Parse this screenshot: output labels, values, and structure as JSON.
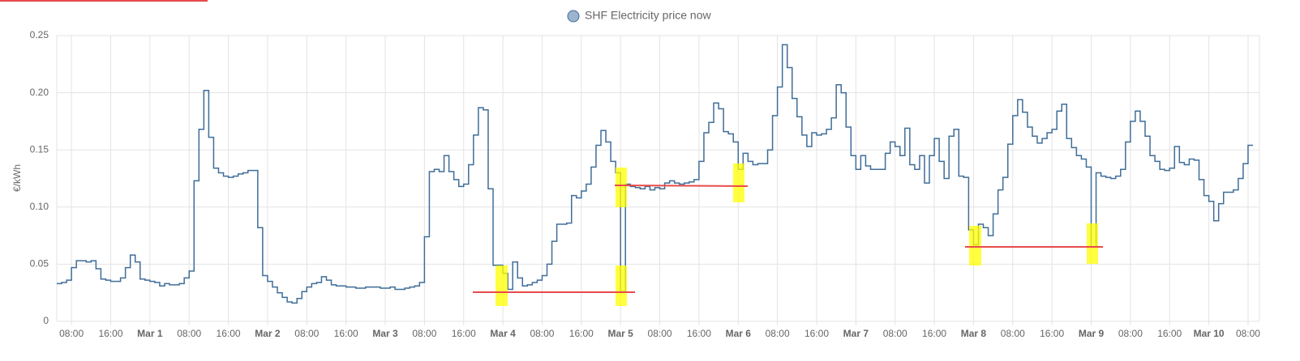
{
  "chart_data": {
    "type": "line",
    "series": [
      {
        "name": "SHF Electricity price now",
        "color": "#3f6d98",
        "legend_fill": "#9db4cf",
        "step": true,
        "values": [
          0.033,
          0.034,
          0.036,
          0.047,
          0.053,
          0.053,
          0.052,
          0.053,
          0.046,
          0.037,
          0.036,
          0.035,
          0.035,
          0.038,
          0.047,
          0.058,
          0.052,
          0.037,
          0.036,
          0.035,
          0.034,
          0.031,
          0.033,
          0.032,
          0.032,
          0.033,
          0.038,
          0.044,
          0.123,
          0.168,
          0.202,
          0.161,
          0.134,
          0.13,
          0.127,
          0.126,
          0.127,
          0.129,
          0.13,
          0.132,
          0.132,
          0.082,
          0.04,
          0.035,
          0.03,
          0.025,
          0.021,
          0.017,
          0.016,
          0.02,
          0.026,
          0.03,
          0.033,
          0.034,
          0.039,
          0.036,
          0.032,
          0.031,
          0.031,
          0.03,
          0.03,
          0.029,
          0.029,
          0.03,
          0.03,
          0.03,
          0.029,
          0.029,
          0.03,
          0.028,
          0.028,
          0.029,
          0.03,
          0.031,
          0.034,
          0.074,
          0.131,
          0.133,
          0.131,
          0.145,
          0.131,
          0.124,
          0.118,
          0.12,
          0.137,
          0.163,
          0.187,
          0.185,
          0.116,
          0.049,
          0.049,
          0.042,
          0.028,
          0.052,
          0.038,
          0.031,
          0.032,
          0.034,
          0.036,
          0.04,
          0.05,
          0.07,
          0.085,
          0.085,
          0.086,
          0.11,
          0.108,
          0.114,
          0.12,
          0.135,
          0.154,
          0.167,
          0.157,
          0.14,
          0.13,
          0.026,
          0.12,
          0.118,
          0.117,
          0.116,
          0.118,
          0.115,
          0.117,
          0.116,
          0.121,
          0.123,
          0.121,
          0.12,
          0.121,
          0.122,
          0.124,
          0.14,
          0.165,
          0.174,
          0.191,
          0.186,
          0.166,
          0.164,
          0.157,
          0.133,
          0.147,
          0.14,
          0.137,
          0.138,
          0.138,
          0.15,
          0.18,
          0.205,
          0.242,
          0.222,
          0.195,
          0.179,
          0.163,
          0.153,
          0.165,
          0.163,
          0.164,
          0.168,
          0.178,
          0.207,
          0.2,
          0.17,
          0.145,
          0.133,
          0.145,
          0.136,
          0.133,
          0.133,
          0.133,
          0.147,
          0.157,
          0.153,
          0.145,
          0.169,
          0.137,
          0.133,
          0.145,
          0.121,
          0.145,
          0.16,
          0.14,
          0.125,
          0.162,
          0.168,
          0.127,
          0.126,
          0.08,
          0.067,
          0.085,
          0.082,
          0.075,
          0.094,
          0.115,
          0.126,
          0.155,
          0.18,
          0.194,
          0.183,
          0.17,
          0.162,
          0.156,
          0.16,
          0.165,
          0.168,
          0.184,
          0.19,
          0.16,
          0.152,
          0.145,
          0.142,
          0.135,
          0.065,
          0.13,
          0.127,
          0.126,
          0.125,
          0.127,
          0.133,
          0.157,
          0.175,
          0.184,
          0.175,
          0.162,
          0.145,
          0.14,
          0.133,
          0.132,
          0.134,
          0.153,
          0.139,
          0.137,
          0.142,
          0.141,
          0.124,
          0.11,
          0.105,
          0.088,
          0.103,
          0.113,
          0.113,
          0.115,
          0.125,
          0.138,
          0.154,
          0.154
        ]
      }
    ],
    "x": [
      "Feb 28 05:00",
      "Feb 28 06:00",
      "Feb 28 07:00",
      "Feb 28 08:00",
      "Feb 28 09:00",
      "Feb 28 10:00",
      "Feb 28 11:00",
      "Feb 28 12:00",
      "Feb 28 13:00",
      "Feb 28 14:00",
      "Feb 28 15:00",
      "Feb 28 16:00",
      "Feb 28 17:00",
      "Feb 28 18:00",
      "Feb 28 19:00",
      "Feb 28 20:00",
      "Feb 28 21:00",
      "Feb 28 22:00",
      "Feb 28 23:00",
      "Mar 1 00:00",
      "Mar 1 01:00",
      "Mar 1 02:00",
      "Mar 1 03:00",
      "Mar 1 04:00",
      "Mar 1 05:00",
      "Mar 1 06:00",
      "Mar 1 07:00",
      "Mar 1 08:00",
      "Mar 1 09:00",
      "Mar 1 10:00",
      "Mar 1 11:00",
      "Mar 1 12:00",
      "Mar 1 13:00",
      "Mar 1 14:00",
      "Mar 1 15:00",
      "Mar 1 16:00",
      "Mar 1 17:00",
      "Mar 1 18:00",
      "Mar 1 19:00",
      "Mar 1 20:00",
      "Mar 1 21:00",
      "Mar 1 22:00",
      "Mar 1 23:00",
      "Mar 2 00:00",
      "Mar 2 01:00",
      "Mar 2 02:00",
      "Mar 2 03:00",
      "Mar 2 04:00",
      "Mar 2 05:00",
      "Mar 2 06:00",
      "Mar 2 07:00",
      "Mar 2 08:00",
      "Mar 2 09:00",
      "Mar 2 10:00",
      "Mar 2 11:00",
      "Mar 2 12:00",
      "Mar 2 13:00",
      "Mar 2 14:00",
      "Mar 2 15:00",
      "Mar 2 16:00",
      "Mar 2 17:00",
      "Mar 2 18:00",
      "Mar 2 19:00",
      "Mar 2 20:00",
      "Mar 2 21:00",
      "Mar 2 22:00",
      "Mar 2 23:00",
      "Mar 3 00:00",
      "Mar 3 01:00",
      "Mar 3 02:00",
      "Mar 3 03:00",
      "Mar 3 04:00",
      "Mar 3 05:00",
      "Mar 3 06:00",
      "Mar 3 07:00",
      "Mar 3 08:00",
      "Mar 3 09:00",
      "Mar 3 10:00",
      "Mar 3 11:00",
      "Mar 3 12:00",
      "Mar 3 13:00",
      "Mar 3 14:00",
      "Mar 3 15:00",
      "Mar 3 16:00",
      "Mar 3 17:00",
      "Mar 3 18:00",
      "Mar 3 19:00",
      "Mar 3 20:00",
      "Mar 3 21:00",
      "Mar 3 22:00",
      "Mar 3 23:00",
      "Mar 4 00:00",
      "Mar 4 01:00",
      "Mar 4 02:00",
      "Mar 4 03:00",
      "Mar 4 04:00",
      "Mar 4 05:00",
      "Mar 4 06:00",
      "Mar 4 07:00",
      "Mar 4 08:00",
      "Mar 4 09:00",
      "Mar 4 10:00",
      "Mar 4 11:00",
      "Mar 4 12:00",
      "Mar 4 13:00",
      "Mar 4 14:00",
      "Mar 4 15:00",
      "Mar 4 16:00",
      "Mar 4 17:00",
      "Mar 4 18:00",
      "Mar 4 19:00",
      "Mar 4 20:00",
      "Mar 4 21:00",
      "Mar 4 22:00",
      "Mar 4 23:00",
      "Mar 5 00:00",
      "Mar 5 01:00",
      "Mar 5 02:00",
      "Mar 5 03:00",
      "Mar 5 04:00",
      "Mar 5 05:00",
      "Mar 5 06:00",
      "Mar 5 07:00",
      "Mar 5 08:00",
      "Mar 5 09:00",
      "Mar 5 10:00",
      "Mar 5 11:00",
      "Mar 5 12:00",
      "Mar 5 13:00",
      "Mar 5 14:00",
      "Mar 5 15:00",
      "Mar 5 16:00",
      "Mar 5 17:00",
      "Mar 5 18:00",
      "Mar 5 19:00",
      "Mar 5 20:00",
      "Mar 5 21:00",
      "Mar 5 22:00",
      "Mar 5 23:00",
      "Mar 6 00:00",
      "Mar 6 01:00",
      "Mar 6 02:00",
      "Mar 6 03:00",
      "Mar 6 04:00",
      "Mar 6 05:00",
      "Mar 6 06:00",
      "Mar 6 07:00",
      "Mar 6 08:00",
      "Mar 6 09:00",
      "Mar 6 10:00",
      "Mar 6 11:00",
      "Mar 6 12:00",
      "Mar 6 13:00",
      "Mar 6 14:00",
      "Mar 6 15:00",
      "Mar 6 16:00",
      "Mar 6 17:00",
      "Mar 6 18:00",
      "Mar 6 19:00",
      "Mar 6 20:00",
      "Mar 6 21:00",
      "Mar 6 22:00",
      "Mar 6 23:00",
      "Mar 7 00:00",
      "Mar 7 01:00",
      "Mar 7 02:00",
      "Mar 7 03:00",
      "Mar 7 04:00",
      "Mar 7 05:00",
      "Mar 7 06:00",
      "Mar 7 07:00",
      "Mar 7 08:00",
      "Mar 7 09:00",
      "Mar 7 10:00",
      "Mar 7 11:00",
      "Mar 7 12:00",
      "Mar 7 13:00",
      "Mar 7 14:00",
      "Mar 7 15:00",
      "Mar 7 16:00",
      "Mar 7 17:00",
      "Mar 7 18:00",
      "Mar 7 19:00",
      "Mar 7 20:00",
      "Mar 7 21:00",
      "Mar 7 22:00",
      "Mar 7 23:00",
      "Mar 8 00:00",
      "Mar 8 01:00",
      "Mar 8 02:00",
      "Mar 8 03:00",
      "Mar 8 04:00",
      "Mar 8 05:00",
      "Mar 8 06:00",
      "Mar 8 07:00",
      "Mar 8 08:00",
      "Mar 8 09:00",
      "Mar 8 10:00",
      "Mar 8 11:00",
      "Mar 8 12:00",
      "Mar 8 13:00",
      "Mar 8 14:00",
      "Mar 8 15:00",
      "Mar 8 16:00",
      "Mar 8 17:00",
      "Mar 8 18:00",
      "Mar 8 19:00",
      "Mar 8 20:00",
      "Mar 8 21:00",
      "Mar 8 22:00",
      "Mar 8 23:00",
      "Mar 9 00:00",
      "Mar 9 01:00",
      "Mar 9 02:00",
      "Mar 9 03:00",
      "Mar 9 04:00",
      "Mar 9 05:00",
      "Mar 9 06:00",
      "Mar 9 07:00",
      "Mar 9 08:00",
      "Mar 9 09:00",
      "Mar 9 10:00",
      "Mar 9 11:00",
      "Mar 9 12:00",
      "Mar 9 13:00",
      "Mar 9 14:00",
      "Mar 9 15:00",
      "Mar 9 16:00",
      "Mar 9 17:00",
      "Mar 9 18:00",
      "Mar 9 19:00",
      "Mar 9 20:00",
      "Mar 9 21:00",
      "Mar 9 22:00",
      "Mar 9 23:00",
      "Mar 10 00:00",
      "Mar 10 01:00",
      "Mar 10 02:00",
      "Mar 10 03:00",
      "Mar 10 04:00",
      "Mar 10 05:00",
      "Mar 10 06:00",
      "Mar 10 07:00",
      "Mar 10 08:00",
      "Mar 10 09:00"
    ],
    "xlim": [
      "Feb 28 05:00",
      "Mar 10 09:00"
    ],
    "xticks": [
      {
        "value": "Feb 28 08:00",
        "label": "08:00"
      },
      {
        "value": "Feb 28 16:00",
        "label": "16:00"
      },
      {
        "value": "Mar 1 00:00",
        "label": "Mar 1"
      },
      {
        "value": "Mar 1 08:00",
        "label": "08:00"
      },
      {
        "value": "Mar 1 16:00",
        "label": "16:00"
      },
      {
        "value": "Mar 2 00:00",
        "label": "Mar 2"
      },
      {
        "value": "Mar 2 08:00",
        "label": "08:00"
      },
      {
        "value": "Mar 2 16:00",
        "label": "16:00"
      },
      {
        "value": "Mar 3 00:00",
        "label": "Mar 3"
      },
      {
        "value": "Mar 3 08:00",
        "label": "08:00"
      },
      {
        "value": "Mar 3 16:00",
        "label": "16:00"
      },
      {
        "value": "Mar 4 00:00",
        "label": "Mar 4"
      },
      {
        "value": "Mar 4 08:00",
        "label": "08:00"
      },
      {
        "value": "Mar 4 16:00",
        "label": "16:00"
      },
      {
        "value": "Mar 5 00:00",
        "label": "Mar 5"
      },
      {
        "value": "Mar 5 08:00",
        "label": "08:00"
      },
      {
        "value": "Mar 5 16:00",
        "label": "16:00"
      },
      {
        "value": "Mar 6 00:00",
        "label": "Mar 6"
      },
      {
        "value": "Mar 6 08:00",
        "label": "08:00"
      },
      {
        "value": "Mar 6 16:00",
        "label": "16:00"
      },
      {
        "value": "Mar 7 00:00",
        "label": "Mar 7"
      },
      {
        "value": "Mar 7 08:00",
        "label": "08:00"
      },
      {
        "value": "Mar 7 16:00",
        "label": "16:00"
      },
      {
        "value": "Mar 8 00:00",
        "label": "Mar 8"
      },
      {
        "value": "Mar 8 08:00",
        "label": "08:00"
      },
      {
        "value": "Mar 8 16:00",
        "label": "16:00"
      },
      {
        "value": "Mar 9 00:00",
        "label": "Mar 9"
      },
      {
        "value": "Mar 9 08:00",
        "label": "08:00"
      },
      {
        "value": "Mar 9 16:00",
        "label": "16:00"
      },
      {
        "value": "Mar 10 00:00",
        "label": "Mar 10"
      },
      {
        "value": "Mar 10 08:00",
        "label": "08:00"
      }
    ],
    "y_label": "€/kWh",
    "ylim": [
      0,
      0.25
    ],
    "yticks": [
      0,
      0.05,
      {
        "value": 0.1,
        "label": "0.10"
      },
      0.15,
      {
        "value": 0.2,
        "label": "0.20"
      },
      0.25
    ],
    "grid": true,
    "legend": "top"
  }
}
